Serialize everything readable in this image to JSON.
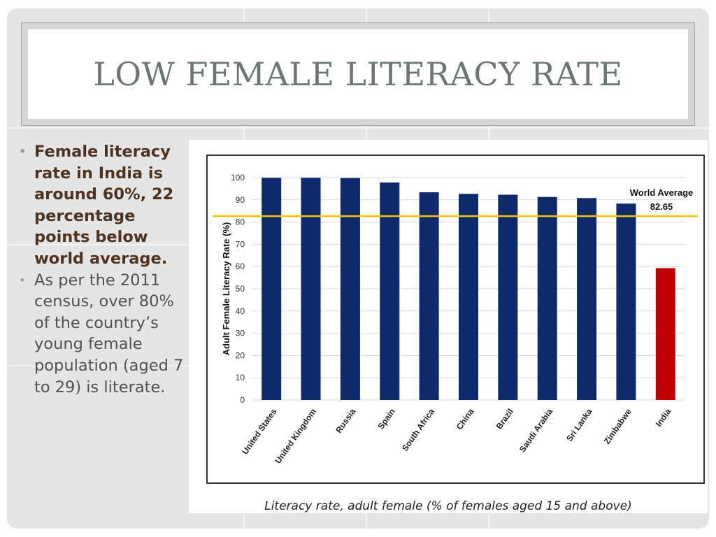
{
  "slide": {
    "title": "LOW FEMALE LITERACY RATE",
    "bullets": [
      {
        "text": "Female literacy rate in India is around 60%, 22 percentage points below world average.",
        "emphasis": true
      },
      {
        "text": "As per the 2011 census, over 80% of the country’s young female population (aged 7 to 29) is literate.",
        "emphasis": false
      }
    ],
    "caption": "Literacy rate, adult female (% of females aged 15 and above)"
  },
  "chart_data": {
    "type": "bar",
    "title": "",
    "xlabel": "",
    "ylabel": "Adult Female Literacy Rate (%)",
    "ylim": [
      0,
      100
    ],
    "yticks": [
      0,
      10,
      20,
      30,
      40,
      50,
      60,
      70,
      80,
      90,
      100
    ],
    "grid": true,
    "categories": [
      "United States",
      "United Kingdom",
      "Russia",
      "Spain",
      "South Africa",
      "China",
      "Brazil",
      "Saudi Arabia",
      "Sri Lanka",
      "Zimbabwe",
      "India"
    ],
    "values": [
      99.9,
      99.9,
      99.8,
      97.8,
      93.4,
      92.7,
      92.3,
      91.3,
      90.8,
      88.3,
      59.3
    ],
    "bar_colors": [
      "#0d2a6b",
      "#0d2a6b",
      "#0d2a6b",
      "#0d2a6b",
      "#0d2a6b",
      "#0d2a6b",
      "#0d2a6b",
      "#0d2a6b",
      "#0d2a6b",
      "#0d2a6b",
      "#c00000"
    ],
    "reference_line": {
      "label": "World Average",
      "value": 82.65,
      "value_label": "82.65",
      "color": "#f2c300"
    }
  }
}
